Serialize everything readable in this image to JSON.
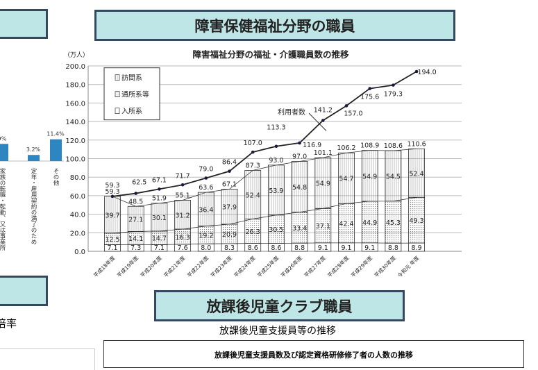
{
  "left_panel": {
    "bar_labels": [
      "9%",
      "3.2%",
      "11.4%"
    ],
    "bar_values": [
      9,
      3.2,
      11.4
    ],
    "categories": [
      "家族の転職・転勤、又は事業所",
      "定年・雇用契約の満了のため",
      "その他"
    ],
    "bottom_text": "倍率",
    "bar_color": "#2e86c1"
  },
  "section1": {
    "title": "障害保健福祉分野の職員"
  },
  "section2": {
    "title": "放課後児童クラブ職員",
    "subtitle": "放課後児童支援員等の推移",
    "table_title": "放課後児童支援員数及び認定資格研修修了者の人数の推移"
  },
  "chart_data": {
    "type": "bar",
    "stacked": true,
    "title": "障害福祉分野の福祉・介護職員数の推移",
    "ylabel": "（万人）",
    "ylim": [
      0,
      200
    ],
    "yticks": [
      "0.0",
      "20.0",
      "40.0",
      "60.0",
      "80.0",
      "100.0",
      "120.0",
      "140.0",
      "160.0",
      "180.0",
      "200.0"
    ],
    "grid": true,
    "legend_position": "top-left",
    "categories": [
      "平成18年度",
      "平成19年度",
      "平成20年度",
      "平成21年度",
      "平成22年度",
      "平成23年度",
      "平成24年度",
      "平成25年度",
      "平成26年度",
      "平成27年度",
      "平成28年度",
      "平成29年度",
      "平成30年度",
      "令和元 年度"
    ],
    "series": [
      {
        "name": "入所系",
        "values": [
          7.1,
          7.3,
          7.1,
          7.6,
          8.0,
          8.3,
          8.6,
          8.6,
          8.8,
          9.1,
          9.1,
          9.1,
          8.8,
          8.9
        ]
      },
      {
        "name": "通所系等",
        "values": [
          12.5,
          14.1,
          14.7,
          16.3,
          19.2,
          20.9,
          26.3,
          30.5,
          33.4,
          37.1,
          42.4,
          44.9,
          45.3,
          49.3
        ]
      },
      {
        "name": "訪問系",
        "values": [
          39.7,
          27.1,
          30.1,
          31.2,
          36.4,
          37.9,
          52.4,
          53.9,
          54.8,
          54.9,
          54.7,
          54.9,
          54.5,
          52.4
        ]
      }
    ],
    "totals": [
      59.3,
      48.5,
      51.9,
      55.1,
      63.6,
      67.1,
      87.3,
      93.0,
      97.0,
      101.1,
      106.2,
      108.9,
      108.6,
      110.6
    ],
    "line": {
      "name": "利用者数",
      "values": [
        59.3,
        62.5,
        67.1,
        71.7,
        79.0,
        86.4,
        107.0,
        113.3,
        116.9,
        141.2,
        157.0,
        175.6,
        179.3,
        194.0
      ]
    }
  }
}
